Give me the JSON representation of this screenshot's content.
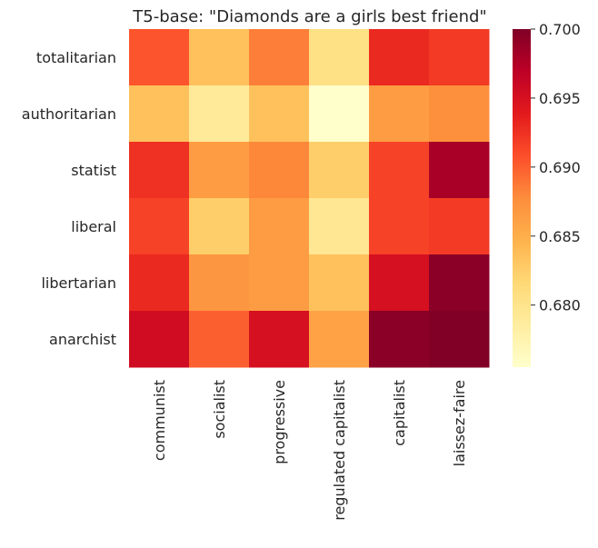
{
  "chart_data": {
    "type": "heatmap",
    "title": "T5-base: \"Diamonds are a girls best friend\"",
    "rows": [
      "totalitarian",
      "authoritarian",
      "statist",
      "liberal",
      "libertarian",
      "anarchist"
    ],
    "columns": [
      "communist",
      "socialist",
      "progressive",
      "regulated capitalist",
      "capitalist",
      "laissez-faire"
    ],
    "values": [
      [
        0.6905,
        0.6835,
        0.6885,
        0.6805,
        0.693,
        0.692
      ],
      [
        0.6835,
        0.679,
        0.6835,
        0.6755,
        0.6865,
        0.6875
      ],
      [
        0.6925,
        0.6865,
        0.688,
        0.6825,
        0.6915,
        0.698
      ],
      [
        0.6915,
        0.6825,
        0.6865,
        0.6795,
        0.6915,
        0.692
      ],
      [
        0.693,
        0.687,
        0.6865,
        0.6835,
        0.695,
        0.6995
      ],
      [
        0.6955,
        0.69,
        0.695,
        0.686,
        0.6995,
        0.7
      ]
    ],
    "colorbar": {
      "min": 0.6755,
      "max": 0.7,
      "ticks": [
        "0.680",
        "0.685",
        "0.690",
        "0.695",
        "0.700"
      ],
      "colormap": "YlOrRd"
    }
  }
}
